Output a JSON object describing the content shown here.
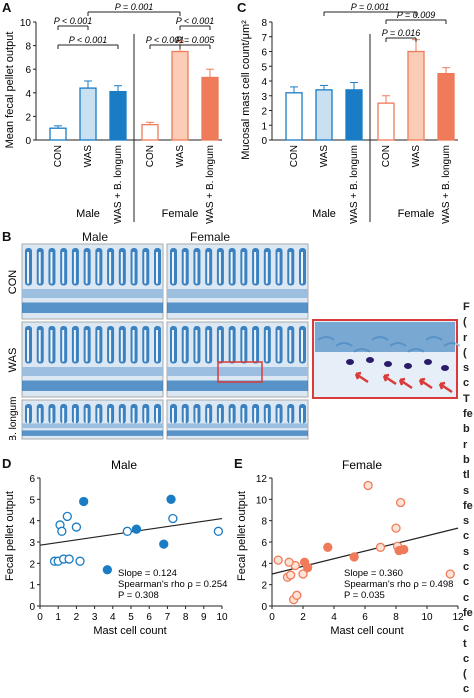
{
  "panels": {
    "A": {
      "letter": "A",
      "ylabel": "Mean fecal pellet output",
      "yticks": [
        "0",
        "2",
        "4",
        "6",
        "8",
        "10"
      ],
      "groups": [
        "CON",
        "WAS",
        "WAS + B. longum"
      ],
      "sex_labels": [
        "Male",
        "Female"
      ],
      "pvalues": [
        "P = 0.001",
        "P < 0.001",
        "P < 0.001",
        "P < 0.001",
        "P < 0.001",
        "P = 0.005"
      ]
    },
    "C": {
      "letter": "C",
      "ylabel": "Mucosal mast cell count/μm²",
      "yticks": [
        "0",
        "1",
        "2",
        "3",
        "4",
        "5",
        "6",
        "7",
        "8"
      ],
      "groups": [
        "CON",
        "WAS",
        "WAS + B. longum"
      ],
      "sex_labels": [
        "Male",
        "Female"
      ],
      "pvalues": [
        "P = 0.001",
        "P = 0.009",
        "P = 0.016"
      ]
    },
    "B": {
      "letter": "B",
      "col_labels": [
        "Male",
        "Female"
      ],
      "row_labels": [
        "CON",
        "WAS",
        "WAS + B. longum"
      ]
    },
    "D": {
      "letter": "D",
      "title": "Male",
      "xlabel": "Mast cell count",
      "ylabel": "Fecal pellet output",
      "stats": [
        "Slope = 0.124",
        "Spearman's rho ρ = 0.254",
        "P = 0.308"
      ]
    },
    "E": {
      "letter": "E",
      "title": "Female",
      "xlabel": "Mast cell count",
      "ylabel": "Fecal pellet output",
      "stats": [
        "Slope = 0.360",
        "Spearman's rho ρ = 0.498",
        "P = 0.035"
      ]
    }
  },
  "caption_fragment": [
    "F",
    "(",
    "r",
    "(",
    "s",
    "c",
    "T",
    "fe",
    "b",
    "r",
    "b",
    "tl",
    "s",
    "fe",
    "s",
    "c",
    "s",
    "c",
    "c",
    "c",
    "fe",
    "c",
    "t",
    "c",
    "(",
    "c"
  ],
  "chart_data": [
    {
      "type": "bar",
      "title": "",
      "ylabel": "Mean fecal pellet output",
      "ylim": [
        0,
        10
      ],
      "categories": [
        "Male CON",
        "Male WAS",
        "Male WAS + B. longum",
        "Female CON",
        "Female WAS",
        "Female WAS + B. longum"
      ],
      "values": [
        1.0,
        4.4,
        4.1,
        1.3,
        7.5,
        5.3
      ],
      "errors": [
        0.2,
        0.6,
        0.5,
        0.2,
        0.9,
        0.7
      ],
      "colors": [
        "#ffffff",
        "#c9dff2",
        "#1a7cc4",
        "#ffffff",
        "#fbcdb7",
        "#ef7b5a"
      ],
      "edge_colors": [
        "#1a7cc4",
        "#1a7cc4",
        "#1a7cc4",
        "#ef7b5a",
        "#ef7b5a",
        "#ef7b5a"
      ]
    },
    {
      "type": "bar",
      "title": "",
      "ylabel": "Mucosal mast cell count/μm²",
      "ylim": [
        0,
        8
      ],
      "categories": [
        "Male CON",
        "Male WAS",
        "Male WAS + B. longum",
        "Female CON",
        "Female WAS",
        "Female WAS + B. longum"
      ],
      "values": [
        3.2,
        3.4,
        3.4,
        2.5,
        6.0,
        4.5
      ],
      "errors": [
        0.4,
        0.3,
        0.5,
        0.5,
        0.8,
        0.4
      ],
      "colors": [
        "#ffffff",
        "#c9dff2",
        "#1a7cc4",
        "#ffffff",
        "#fbcdb7",
        "#ef7b5a"
      ],
      "edge_colors": [
        "#1a7cc4",
        "#1a7cc4",
        "#1a7cc4",
        "#ef7b5a",
        "#ef7b5a",
        "#ef7b5a"
      ]
    },
    {
      "type": "scatter",
      "title": "Male",
      "xlabel": "Mast cell count",
      "ylabel": "Fecal pellet output",
      "xlim": [
        0,
        10
      ],
      "ylim": [
        0,
        6
      ],
      "series": [
        {
          "name": "",
          "kind": "open",
          "x": [
            0.8,
            1.1,
            1.2,
            1.5,
            1.0,
            1.3,
            1.6,
            2.0,
            4.8,
            9.8,
            7.3,
            2.2
          ],
          "y": [
            2.1,
            3.8,
            3.5,
            4.2,
            2.1,
            2.2,
            2.2,
            3.7,
            3.5,
            3.5,
            4.1,
            2.1
          ]
        },
        {
          "name": "",
          "kind": "filled",
          "x": [
            2.4,
            3.7,
            5.3,
            7.2,
            6.8
          ],
          "y": [
            4.9,
            1.7,
            3.6,
            5.0,
            2.9
          ]
        }
      ],
      "fit": {
        "x": [
          0,
          10
        ],
        "y": [
          2.85,
          4.1
        ]
      }
    },
    {
      "type": "scatter",
      "title": "Female",
      "xlabel": "Mast cell count",
      "ylabel": "Fecal pellet output",
      "xlim": [
        0,
        12
      ],
      "ylim": [
        0,
        12
      ],
      "series": [
        {
          "name": "",
          "kind": "open",
          "x": [
            0.4,
            1.0,
            1.2,
            1.4,
            1.6,
            1.5,
            2.0,
            6.2,
            7.0,
            8.0,
            8.1,
            8.3,
            11.5,
            1.1
          ],
          "y": [
            4.3,
            2.7,
            2.9,
            0.6,
            1.0,
            3.8,
            3.0,
            11.3,
            5.5,
            7.3,
            5.6,
            9.7,
            3.0,
            4.1
          ]
        },
        {
          "name": "",
          "kind": "filled",
          "x": [
            2.1,
            2.3,
            3.6,
            5.3,
            8.2,
            8.5
          ],
          "y": [
            4.1,
            3.6,
            5.5,
            4.6,
            5.2,
            5.3
          ]
        }
      ],
      "fit": {
        "x": [
          0,
          12
        ],
        "y": [
          3.0,
          7.3
        ]
      }
    }
  ],
  "colors": {
    "male_accent": "#1a7cc4",
    "female_accent": "#ef7b5a",
    "tissue_blue": "#1f6fb5",
    "highlight_red": "#d93a3a"
  }
}
